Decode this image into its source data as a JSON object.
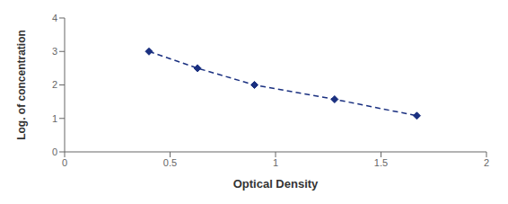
{
  "chart_data": {
    "type": "line",
    "x": [
      0.4,
      0.63,
      0.9,
      1.28,
      1.67
    ],
    "values": [
      3.0,
      2.5,
      2.0,
      1.57,
      1.08
    ],
    "color": "#1a3080",
    "marker": "diamond",
    "line_style": "dashed",
    "xlabel": "Optical Density",
    "ylabel": "Log. of concentration",
    "xlim": [
      0,
      2
    ],
    "ylim": [
      0,
      4
    ],
    "xticks": [
      0,
      0.5,
      1,
      1.5,
      2
    ],
    "yticks": [
      0,
      1,
      2,
      3,
      4
    ],
    "grid": false
  }
}
